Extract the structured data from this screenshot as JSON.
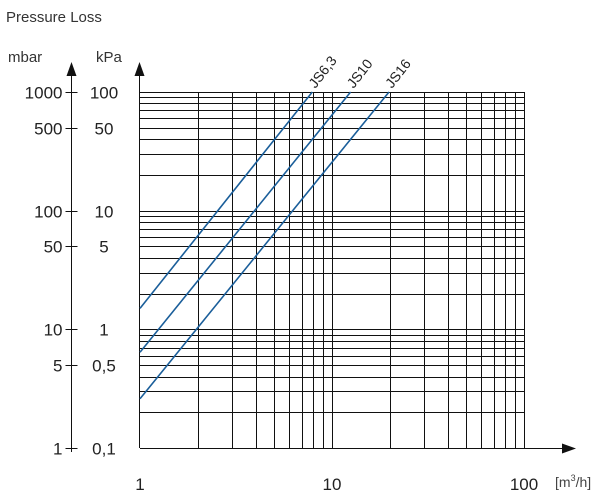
{
  "chart_data": {
    "type": "line",
    "title": "Pressure Loss",
    "y_units": [
      "mbar",
      "kPa"
    ],
    "x_unit_prefix": "[m",
    "x_unit_sup": "3",
    "x_unit_suffix": "/h]",
    "x_scale": "log",
    "y_scale": "log",
    "xlim": [
      1,
      100
    ],
    "ylim_kpa": [
      0.1,
      100
    ],
    "x_ticks": [
      {
        "value": 1,
        "label": "1"
      },
      {
        "value": 10,
        "label": "10"
      },
      {
        "value": 100,
        "label": "100"
      }
    ],
    "y_ticks_mbar": [
      {
        "value": 1000,
        "label": "1000"
      },
      {
        "value": 500,
        "label": "500"
      },
      {
        "value": 100,
        "label": "100"
      },
      {
        "value": 50,
        "label": "50"
      },
      {
        "value": 10,
        "label": "10"
      },
      {
        "value": 5,
        "label": "5"
      },
      {
        "value": 1,
        "label": "1"
      }
    ],
    "y_ticks_kpa": [
      {
        "value": 100,
        "label": "100"
      },
      {
        "value": 50,
        "label": "50"
      },
      {
        "value": 10,
        "label": "10"
      },
      {
        "value": 5,
        "label": "5"
      },
      {
        "value": 1,
        "label": "1"
      },
      {
        "value": 0.5,
        "label": "0,5"
      },
      {
        "value": 0.1,
        "label": "0,1"
      }
    ],
    "grid": true,
    "series": [
      {
        "name": "JS6,3",
        "color": "#1a5e9a",
        "x": [
          1,
          7.9
        ],
        "y": [
          1.5,
          100
        ]
      },
      {
        "name": "JS10",
        "color": "#1a5e9a",
        "x": [
          1,
          12.5
        ],
        "y": [
          0.64,
          100
        ]
      },
      {
        "name": "JS16",
        "color": "#1a5e9a",
        "x": [
          1,
          19.8
        ],
        "y": [
          0.26,
          100
        ]
      }
    ]
  }
}
